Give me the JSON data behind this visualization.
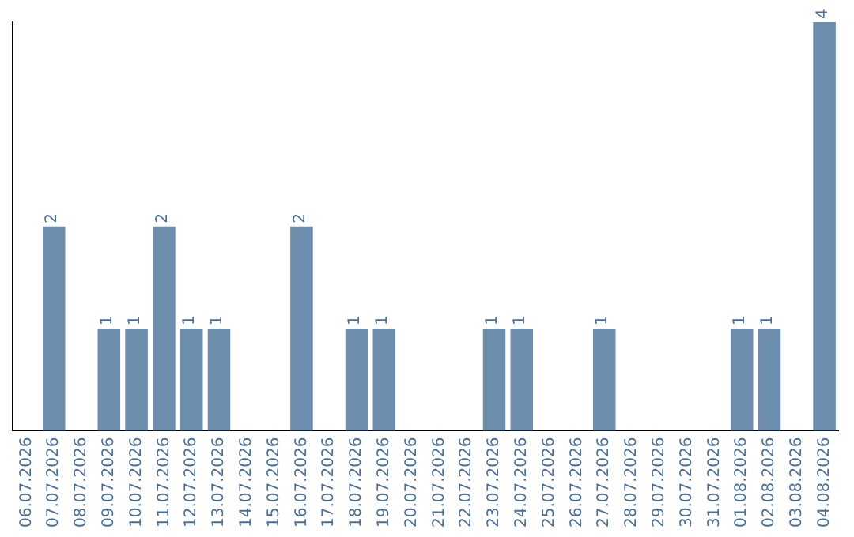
{
  "chart_data": {
    "type": "bar",
    "categories": [
      "06.07.2026",
      "07.07.2026",
      "08.07.2026",
      "09.07.2026",
      "10.07.2026",
      "11.07.2026",
      "12.07.2026",
      "13.07.2026",
      "14.07.2026",
      "15.07.2026",
      "16.07.2026",
      "17.07.2026",
      "18.07.2026",
      "19.07.2026",
      "20.07.2026",
      "21.07.2026",
      "22.07.2026",
      "23.07.2026",
      "24.07.2026",
      "25.07.2026",
      "26.07.2026",
      "27.07.2026",
      "28.07.2026",
      "29.07.2026",
      "30.07.2026",
      "31.07.2026",
      "01.08.2026",
      "02.08.2026",
      "03.08.2026",
      "04.08.2026"
    ],
    "values": [
      0,
      2,
      0,
      1,
      1,
      2,
      1,
      1,
      0,
      0,
      2,
      0,
      1,
      1,
      0,
      0,
      0,
      1,
      1,
      0,
      0,
      1,
      0,
      0,
      0,
      0,
      1,
      1,
      0,
      4
    ],
    "value_labels": [
      null,
      "2",
      null,
      "1",
      "1",
      "2",
      "1",
      "1",
      null,
      null,
      "2",
      null,
      "1",
      "1",
      null,
      null,
      null,
      "1",
      "1",
      null,
      null,
      "1",
      null,
      null,
      null,
      null,
      "1",
      "1",
      null,
      "4"
    ],
    "color": "#6d8dac",
    "grid": false,
    "legend": false
  }
}
